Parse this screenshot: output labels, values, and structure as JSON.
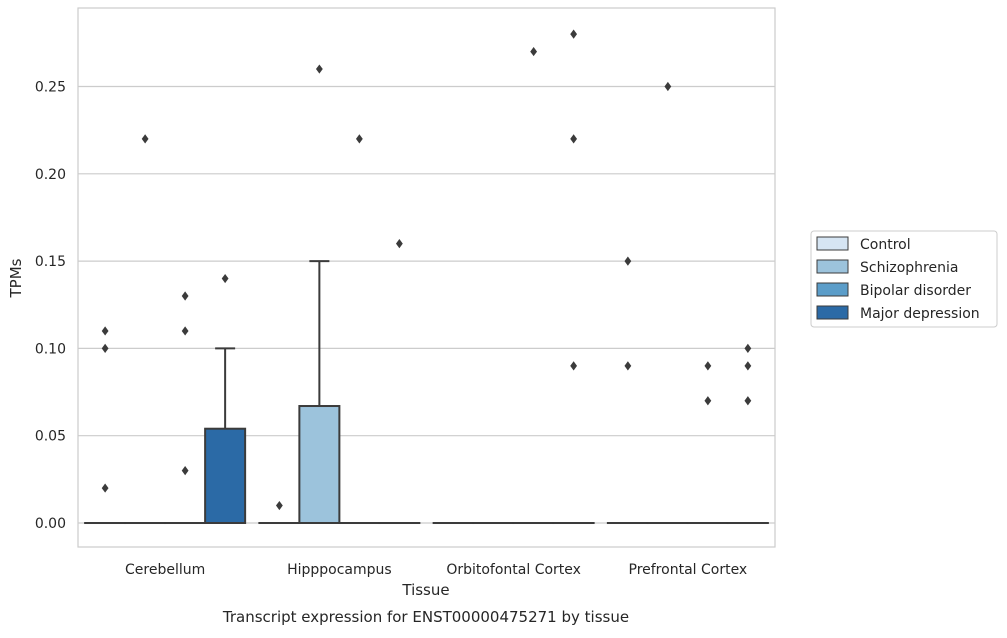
{
  "chart_data": {
    "type": "box",
    "title": "",
    "caption": "Transcript expression for ENST00000475271 by tissue",
    "xlabel": "Tissue",
    "ylabel": "TPMs",
    "categories": [
      "Cerebellum",
      "Hipppocampus",
      "Orbitofontal Cortex",
      "Prefrontal Cortex"
    ],
    "ylim": [
      -0.014,
      0.294
    ],
    "yticks": [
      0.0,
      0.05,
      0.1,
      0.15,
      0.2,
      0.25
    ],
    "ytick_labels": [
      "0.00",
      "0.05",
      "0.10",
      "0.15",
      "0.20",
      "0.25"
    ],
    "grid": "horizontal",
    "legend_position": "right",
    "series": [
      {
        "name": "Control",
        "color": "#d6e5f3",
        "boxes": [
          {
            "category": "Cerebellum",
            "q1": 0,
            "median": 0,
            "q3": 0,
            "whisker_low": 0,
            "whisker_high": 0,
            "outliers": [
              0.11,
              0.1,
              0.02
            ]
          },
          {
            "category": "Hipppocampus",
            "q1": 0,
            "median": 0,
            "q3": 0,
            "whisker_low": 0,
            "whisker_high": 0,
            "outliers": [
              0.01
            ]
          },
          {
            "category": "Orbitofontal Cortex",
            "q1": 0,
            "median": 0,
            "q3": 0,
            "whisker_low": 0,
            "whisker_high": 0,
            "outliers": []
          },
          {
            "category": "Prefrontal Cortex",
            "q1": 0,
            "median": 0,
            "q3": 0,
            "whisker_low": 0,
            "whisker_high": 0,
            "outliers": [
              0.15,
              0.09
            ]
          }
        ]
      },
      {
        "name": "Schizophrenia",
        "color": "#9cc3dc",
        "boxes": [
          {
            "category": "Cerebellum",
            "q1": 0,
            "median": 0,
            "q3": 0,
            "whisker_low": 0,
            "whisker_high": 0,
            "outliers": [
              0.22
            ]
          },
          {
            "category": "Hipppocampus",
            "q1": 0,
            "median": 0,
            "q3": 0.067,
            "whisker_low": 0,
            "whisker_high": 0.15,
            "outliers": [
              0.26
            ]
          },
          {
            "category": "Orbitofontal Cortex",
            "q1": 0,
            "median": 0,
            "q3": 0,
            "whisker_low": 0,
            "whisker_high": 0,
            "outliers": []
          },
          {
            "category": "Prefrontal Cortex",
            "q1": 0,
            "median": 0,
            "q3": 0,
            "whisker_low": 0,
            "whisker_high": 0,
            "outliers": [
              0.25
            ]
          }
        ]
      },
      {
        "name": "Bipolar disorder",
        "color": "#5b9dc9",
        "boxes": [
          {
            "category": "Cerebellum",
            "q1": 0,
            "median": 0,
            "q3": 0,
            "whisker_low": 0,
            "whisker_high": 0,
            "outliers": [
              0.13,
              0.11,
              0.03
            ]
          },
          {
            "category": "Hipppocampus",
            "q1": 0,
            "median": 0,
            "q3": 0,
            "whisker_low": 0,
            "whisker_high": 0,
            "outliers": [
              0.22
            ]
          },
          {
            "category": "Orbitofontal Cortex",
            "q1": 0,
            "median": 0,
            "q3": 0,
            "whisker_low": 0,
            "whisker_high": 0,
            "outliers": [
              0.27
            ]
          },
          {
            "category": "Prefrontal Cortex",
            "q1": 0,
            "median": 0,
            "q3": 0,
            "whisker_low": 0,
            "whisker_high": 0,
            "outliers": [
              0.09,
              0.07
            ]
          }
        ]
      },
      {
        "name": "Major depression",
        "color": "#2b6aa6",
        "boxes": [
          {
            "category": "Cerebellum",
            "q1": 0,
            "median": 0,
            "q3": 0.054,
            "whisker_low": 0,
            "whisker_high": 0.1,
            "outliers": [
              0.14
            ]
          },
          {
            "category": "Hipppocampus",
            "q1": 0,
            "median": 0,
            "q3": 0,
            "whisker_low": 0,
            "whisker_high": 0,
            "outliers": [
              0.16
            ]
          },
          {
            "category": "Orbitofontal Cortex",
            "q1": 0,
            "median": 0,
            "q3": 0,
            "whisker_low": 0,
            "whisker_high": 0,
            "outliers": [
              0.28,
              0.22,
              0.09
            ]
          },
          {
            "category": "Prefrontal Cortex",
            "q1": 0,
            "median": 0,
            "q3": 0,
            "whisker_low": 0,
            "whisker_high": 0,
            "outliers": [
              0.1,
              0.09,
              0.07
            ]
          }
        ]
      }
    ]
  }
}
